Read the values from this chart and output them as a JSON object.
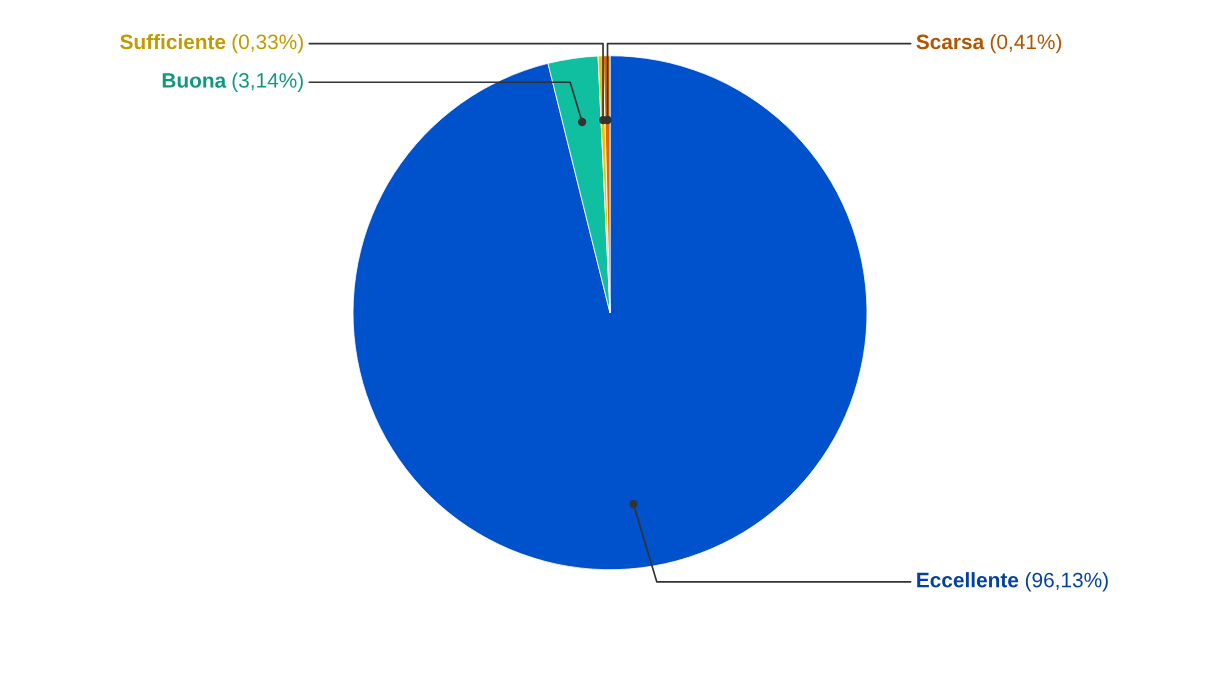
{
  "chart_data": {
    "type": "pie",
    "categories": [
      "Eccellente",
      "Buona",
      "Sufficiente",
      "Scarsa"
    ],
    "values": [
      96.13,
      3.14,
      0.33,
      0.41
    ],
    "value_labels": [
      "(96,13%)",
      "(3,14%)",
      "(0,33%)",
      "(0,41%)"
    ],
    "colors": [
      "#0051cc",
      "#10bfa0",
      "#f2c200",
      "#e06a00"
    ],
    "legend": false
  }
}
